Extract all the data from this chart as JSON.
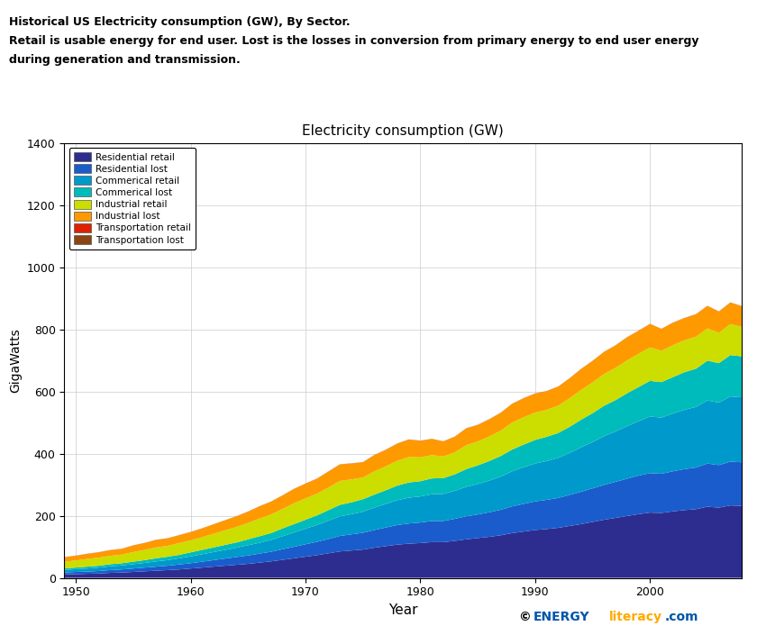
{
  "title_line1": "Historical US Electricity consumption (GW), By Sector.",
  "title_line2": "Retail is usable energy for end user. Lost is the losses in conversion from primary energy to end user energy",
  "title_line3": "during generation and transmission.",
  "chart_title": "Electricity consumption (GW)",
  "xlabel": "Year",
  "ylabel": "GigaWatts",
  "ylim": [
    0,
    1400
  ],
  "years": [
    1949,
    1950,
    1951,
    1952,
    1953,
    1954,
    1955,
    1956,
    1957,
    1958,
    1959,
    1960,
    1961,
    1962,
    1963,
    1964,
    1965,
    1966,
    1967,
    1968,
    1969,
    1970,
    1971,
    1972,
    1973,
    1974,
    1975,
    1976,
    1977,
    1978,
    1979,
    1980,
    1981,
    1982,
    1983,
    1984,
    1985,
    1986,
    1987,
    1988,
    1989,
    1990,
    1991,
    1992,
    1993,
    1994,
    1995,
    1996,
    1997,
    1998,
    1999,
    2000,
    2001,
    2002,
    2003,
    2004,
    2005,
    2006,
    2007,
    2008
  ],
  "residential_retail": [
    11,
    12,
    13,
    14,
    16,
    17,
    19,
    21,
    23,
    25,
    27,
    30,
    33,
    36,
    39,
    42,
    45,
    49,
    53,
    58,
    63,
    68,
    73,
    79,
    85,
    88,
    91,
    97,
    102,
    107,
    110,
    112,
    115,
    115,
    119,
    124,
    128,
    132,
    137,
    144,
    149,
    154,
    157,
    161,
    167,
    173,
    180,
    187,
    193,
    199,
    205,
    210,
    209,
    214,
    218,
    221,
    229,
    226,
    233,
    232
  ],
  "residential_lost": [
    6,
    7,
    7,
    8,
    9,
    10,
    11,
    12,
    13,
    14,
    16,
    17,
    19,
    21,
    23,
    25,
    27,
    29,
    31,
    34,
    37,
    40,
    43,
    46,
    50,
    52,
    54,
    57,
    60,
    63,
    65,
    66,
    68,
    68,
    71,
    74,
    76,
    79,
    82,
    86,
    89,
    92,
    94,
    96,
    100,
    104,
    108,
    112,
    116,
    120,
    124,
    127,
    126,
    129,
    132,
    134,
    139,
    137,
    141,
    140
  ],
  "commercial_retail": [
    8,
    9,
    10,
    11,
    12,
    13,
    14,
    15,
    17,
    18,
    20,
    22,
    24,
    26,
    28,
    30,
    33,
    35,
    38,
    42,
    46,
    50,
    54,
    59,
    63,
    65,
    68,
    72,
    76,
    80,
    83,
    84,
    86,
    87,
    90,
    95,
    98,
    102,
    107,
    113,
    118,
    122,
    125,
    129,
    135,
    143,
    149,
    157,
    162,
    169,
    175,
    182,
    181,
    186,
    191,
    195,
    203,
    201,
    210,
    209
  ],
  "commercial_lost": [
    5,
    5,
    6,
    6,
    7,
    7,
    8,
    9,
    10,
    11,
    11,
    13,
    14,
    15,
    16,
    17,
    19,
    21,
    22,
    25,
    27,
    29,
    31,
    34,
    37,
    38,
    40,
    42,
    44,
    47,
    49,
    49,
    51,
    51,
    53,
    57,
    60,
    63,
    66,
    70,
    73,
    76,
    78,
    80,
    84,
    89,
    93,
    98,
    101,
    106,
    110,
    115,
    114,
    117,
    121,
    123,
    128,
    127,
    133,
    132
  ],
  "industrial_retail": [
    22,
    23,
    25,
    26,
    27,
    28,
    31,
    33,
    35,
    35,
    38,
    39,
    41,
    44,
    47,
    50,
    53,
    57,
    60,
    63,
    67,
    69,
    70,
    73,
    77,
    74,
    70,
    75,
    77,
    80,
    82,
    77,
    75,
    70,
    71,
    77,
    77,
    79,
    82,
    87,
    88,
    88,
    87,
    88,
    92,
    96,
    99,
    102,
    104,
    106,
    107,
    108,
    101,
    103,
    103,
    103,
    104,
    98,
    100,
    95
  ],
  "industrial_lost": [
    14,
    15,
    16,
    17,
    18,
    18,
    21,
    22,
    24,
    24,
    25,
    26,
    28,
    30,
    32,
    34,
    36,
    39,
    41,
    43,
    46,
    47,
    48,
    51,
    53,
    51,
    49,
    52,
    53,
    55,
    56,
    53,
    52,
    48,
    50,
    54,
    53,
    55,
    57,
    60,
    61,
    61,
    60,
    61,
    64,
    67,
    69,
    71,
    72,
    74,
    74,
    75,
    70,
    72,
    71,
    72,
    72,
    68,
    69,
    66
  ],
  "transportation_retail": [
    0.4,
    0.4,
    0.4,
    0.4,
    0.4,
    0.4,
    0.4,
    0.4,
    0.4,
    0.4,
    0.4,
    0.4,
    0.4,
    0.4,
    0.4,
    0.4,
    0.4,
    0.4,
    0.4,
    0.4,
    0.4,
    0.4,
    0.4,
    0.4,
    0.4,
    0.4,
    0.4,
    0.4,
    0.4,
    0.4,
    0.4,
    0.4,
    0.4,
    0.4,
    0.4,
    0.4,
    0.4,
    0.4,
    0.4,
    0.4,
    0.4,
    0.4,
    0.4,
    0.4,
    0.4,
    0.4,
    0.4,
    0.4,
    0.4,
    0.4,
    0.4,
    0.4,
    0.4,
    0.4,
    0.4,
    0.4,
    0.4,
    0.4,
    0.4,
    0.4
  ],
  "transportation_lost": [
    0.2,
    0.2,
    0.2,
    0.2,
    0.2,
    0.2,
    0.2,
    0.2,
    0.2,
    0.2,
    0.2,
    0.2,
    0.2,
    0.2,
    0.2,
    0.2,
    0.2,
    0.2,
    0.2,
    0.2,
    0.2,
    0.2,
    0.2,
    0.2,
    0.2,
    0.2,
    0.2,
    0.2,
    0.2,
    0.2,
    0.2,
    0.2,
    0.2,
    0.2,
    0.2,
    0.2,
    0.2,
    0.2,
    0.2,
    0.2,
    0.2,
    0.2,
    0.2,
    0.2,
    0.2,
    0.2,
    0.2,
    0.2,
    0.2,
    0.2,
    0.2,
    0.2,
    0.2,
    0.2,
    0.2,
    0.2,
    0.2,
    0.2,
    0.2,
    0.2
  ],
  "colors": {
    "residential_retail": "#2d2d8f",
    "residential_lost": "#1a5ccc",
    "commercial_retail": "#0099cc",
    "commercial_lost": "#00bbbb",
    "industrial_retail": "#ccdd00",
    "industrial_lost": "#ff9900",
    "transportation_retail": "#dd2200",
    "transportation_lost": "#8B4513"
  },
  "legend_labels": [
    "Residential retail",
    "Residential lost",
    "Commerical retail",
    "Commerical lost",
    "Industrial retail",
    "Industrial lost",
    "Transportation retail",
    "Transportation lost"
  ],
  "background_color": "#ffffff",
  "grid_color": "#cccccc",
  "xticks": [
    1950,
    1960,
    1970,
    1980,
    1990,
    2000
  ],
  "yticks": [
    0,
    200,
    400,
    600,
    800,
    1000,
    1200,
    1400
  ],
  "title_fontsize": 9.0,
  "axis_title_fontsize": 11,
  "ylabel_fontsize": 10,
  "tick_fontsize": 9
}
